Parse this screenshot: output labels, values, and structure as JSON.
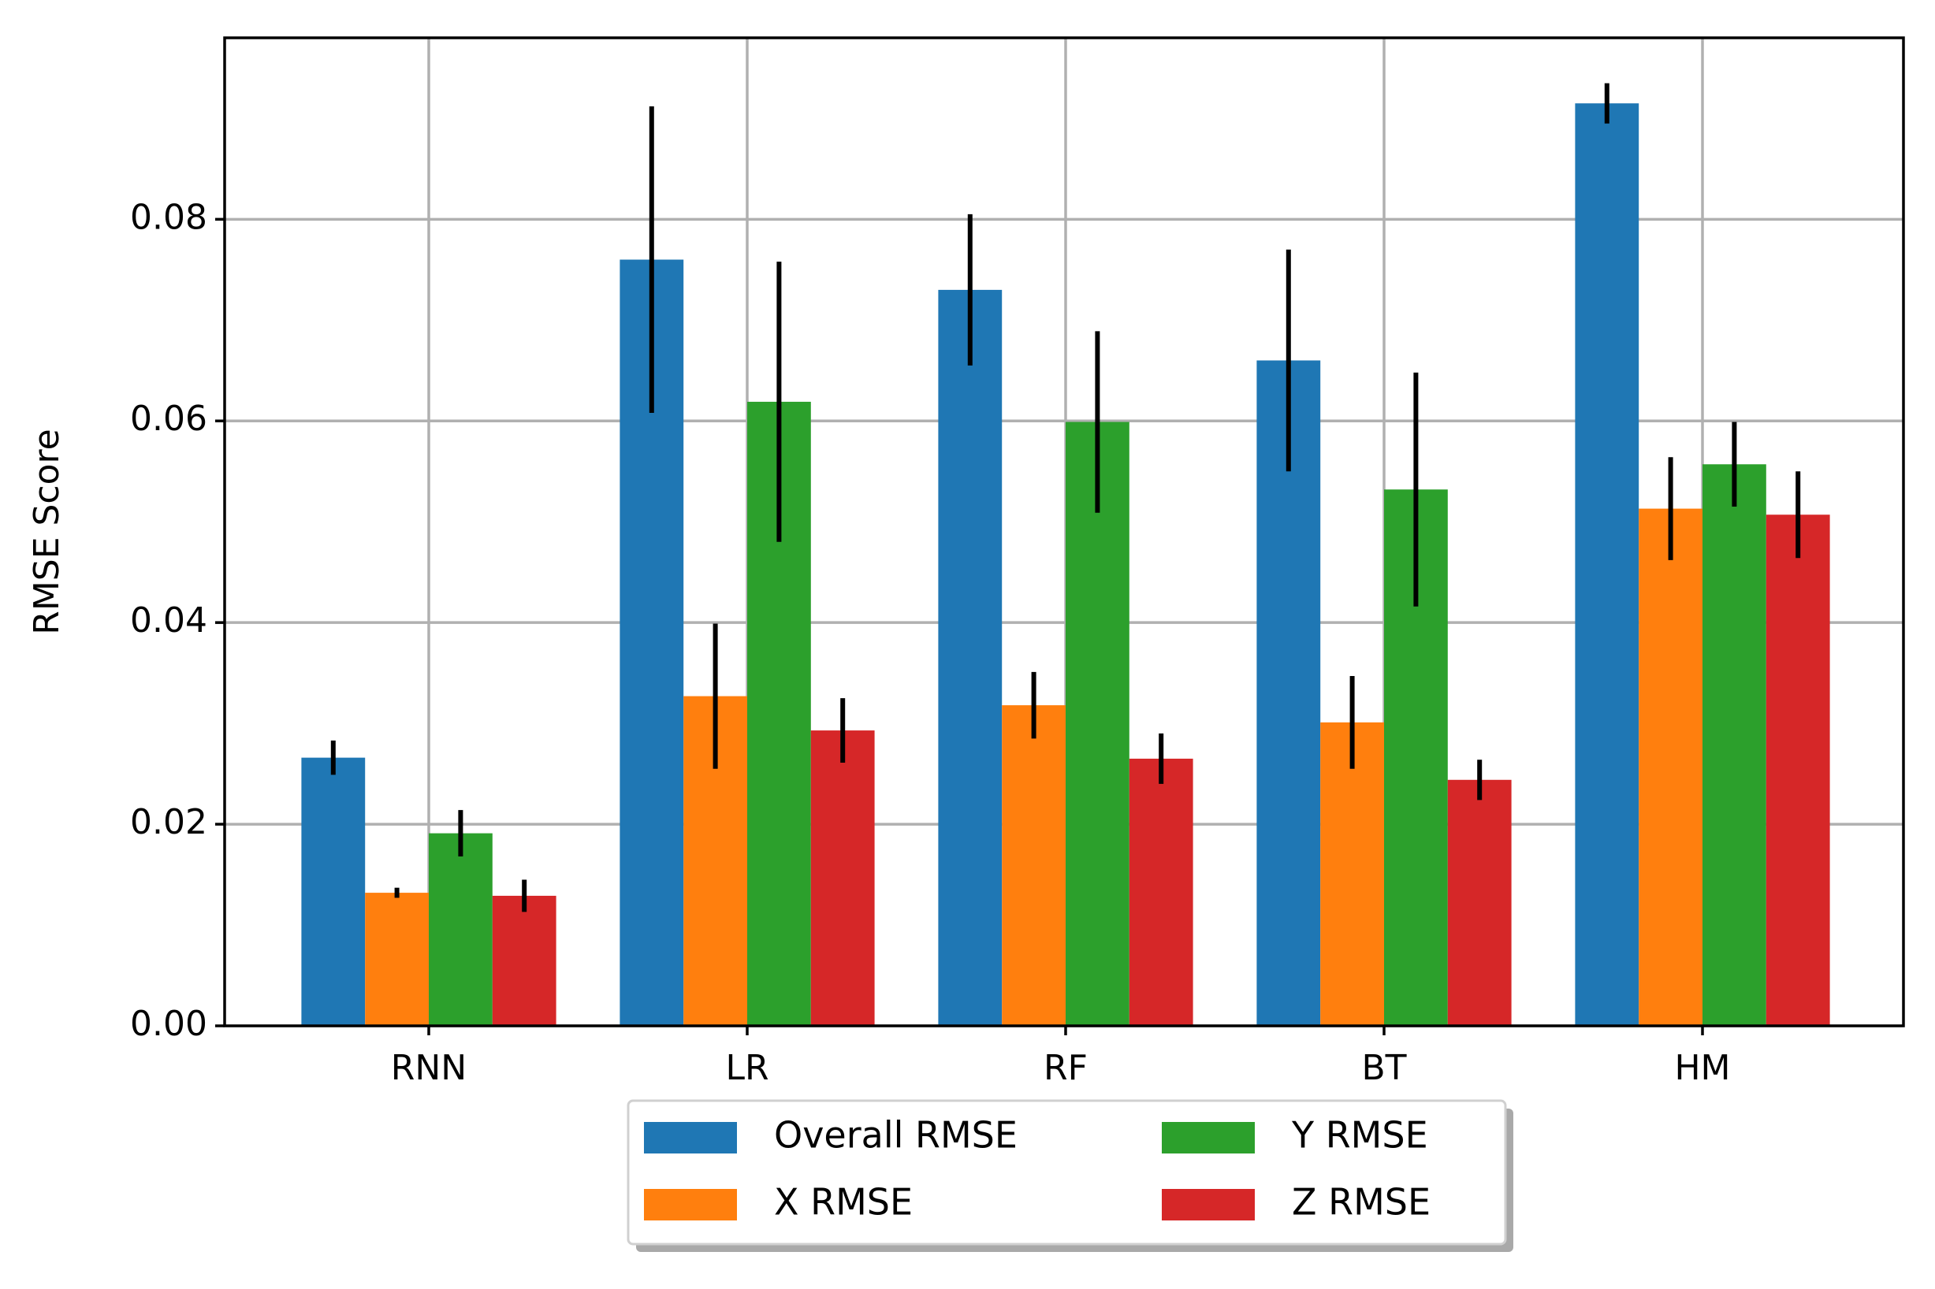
{
  "chart_data": {
    "type": "bar",
    "title": "",
    "xlabel": "",
    "ylabel": "RMSE Score",
    "ylim": [
      0,
      0.098
    ],
    "yticks": [
      "0.00",
      "0.02",
      "0.04",
      "0.06",
      "0.08"
    ],
    "ytick_values": [
      0,
      0.02,
      0.04,
      0.06,
      0.08
    ],
    "grid": true,
    "legend_position": "bottom-center, below axes",
    "categories": [
      "RNN",
      "LR",
      "RF",
      "BT",
      "HM"
    ],
    "series": [
      {
        "name": "Overall RMSE",
        "color": "#1f77b4",
        "values": [
          0.0266,
          0.076,
          0.073,
          0.066,
          0.0915
        ],
        "errors": [
          0.0017,
          0.0152,
          0.0075,
          0.011,
          0.002
        ]
      },
      {
        "name": "X RMSE",
        "color": "#ff7f0e",
        "values": [
          0.0132,
          0.0327,
          0.0318,
          0.0301,
          0.0513
        ],
        "errors": [
          0.0005,
          0.0072,
          0.0033,
          0.0046,
          0.0051
        ]
      },
      {
        "name": "Y RMSE",
        "color": "#2ca02c",
        "values": [
          0.0191,
          0.0619,
          0.0599,
          0.0532,
          0.0557
        ],
        "errors": [
          0.0023,
          0.0139,
          0.009,
          0.0116,
          0.0042
        ]
      },
      {
        "name": "Z RMSE",
        "color": "#d62728",
        "values": [
          0.0129,
          0.0293,
          0.0265,
          0.0244,
          0.0507
        ],
        "errors": [
          0.0016,
          0.0032,
          0.0025,
          0.002,
          0.0043
        ]
      }
    ]
  }
}
